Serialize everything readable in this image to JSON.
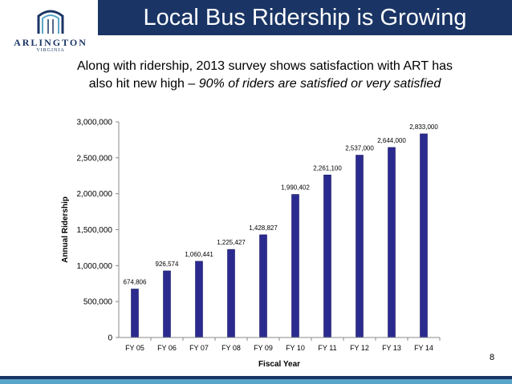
{
  "header": {
    "title": "Local Bus Ridership is Growing"
  },
  "logo": {
    "name": "ARLINGTON",
    "sub": "VIRGINIA"
  },
  "subtitle": {
    "line1": "Along with ridership, 2013 survey shows satisfaction with ART has",
    "line2_plain": "also hit new high – ",
    "line2_italic": "90% of riders are satisfied or very satisfied"
  },
  "page_number": "8",
  "colors": {
    "header": "#1a3565",
    "bar": "#2b2b8f",
    "stripe": "#5aa5c8"
  },
  "chart_data": {
    "type": "bar",
    "categories": [
      "FY 05",
      "FY 06",
      "FY 07",
      "FY 08",
      "FY 09",
      "FY 10",
      "FY 11",
      "FY 12",
      "FY 13",
      "FY 14"
    ],
    "values": [
      674806,
      926574,
      1060441,
      1225427,
      1428827,
      1990402,
      2261100,
      2537000,
      2644000,
      2833000
    ],
    "data_labels": [
      "674,806",
      "926,574",
      "1,060,441",
      "1,225,427",
      "1,428,827",
      "1,990,402",
      "2,261,100",
      "2,537,000",
      "2,644,000",
      "2,833,000"
    ],
    "xlabel": "Fiscal Year",
    "ylabel": "Annual Ridership",
    "ylim": [
      0,
      3000000
    ],
    "yticks": [
      "0",
      "500,000",
      "1,000,000",
      "1,500,000",
      "2,000,000",
      "2,500,000",
      "3,000,000"
    ],
    "grid": false,
    "legend": "none"
  }
}
